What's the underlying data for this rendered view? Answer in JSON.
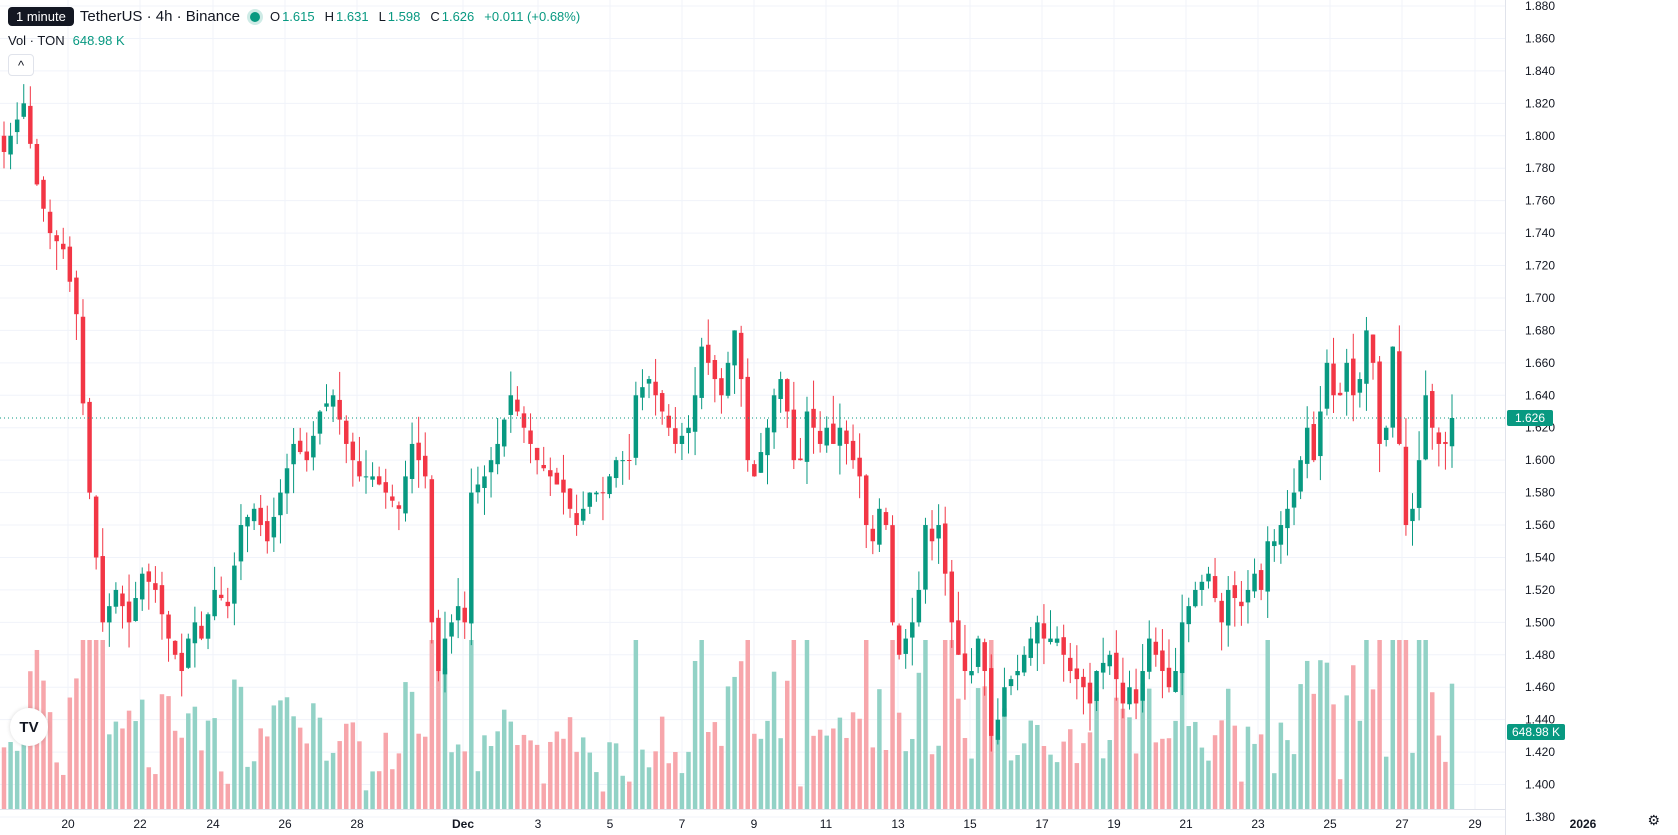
{
  "header": {
    "tooltip": "1 minute",
    "title": "TetherUS · 4h · Binance",
    "open_label": "O",
    "open": "1.615",
    "high_label": "H",
    "high": "1.631",
    "low_label": "L",
    "low": "1.598",
    "close_label": "C",
    "close": "1.626",
    "change": "+0.011 (+0.68%)"
  },
  "volume": {
    "label": "Vol · TON",
    "value": "648.98 K"
  },
  "controls": {
    "collapse": "^",
    "logo": "TV",
    "settings": "⚙"
  },
  "colors": {
    "up": "#089981",
    "down": "#f23645",
    "up_vol": "#92d2c6",
    "down_vol": "#f7a6ab",
    "grid": "#f0f3fa",
    "axis_text": "#131722",
    "last_price_line": "#089981"
  },
  "chart_data": {
    "type": "candlestick",
    "symbol": "TetherUS · 4h · Binance",
    "ylim": [
      1.38,
      1.88
    ],
    "y_ticks": [
      "1.880",
      "1.860",
      "1.840",
      "1.820",
      "1.800",
      "1.780",
      "1.760",
      "1.740",
      "1.720",
      "1.700",
      "1.680",
      "1.660",
      "1.640",
      "1.620",
      "1.600",
      "1.580",
      "1.560",
      "1.540",
      "1.520",
      "1.500",
      "1.480",
      "1.460",
      "1.440",
      "1.420",
      "1.400",
      "1.380"
    ],
    "x_ticks": [
      "20",
      "22",
      "24",
      "26",
      "28",
      "Dec",
      "3",
      "5",
      "7",
      "9",
      "11",
      "13",
      "15",
      "17",
      "19",
      "21",
      "23",
      "25",
      "27",
      "29",
      "2026"
    ],
    "last_price": "1.626",
    "last_volume": "648.98 K",
    "keypoints": [
      [
        0,
        1.79
      ],
      [
        3,
        1.82
      ],
      [
        5,
        1.77
      ],
      [
        7,
        1.74
      ],
      [
        9,
        1.73
      ],
      [
        11,
        1.69
      ],
      [
        13,
        1.58
      ],
      [
        15,
        1.5
      ],
      [
        17,
        1.52
      ],
      [
        19,
        1.5
      ],
      [
        21,
        1.53
      ],
      [
        23,
        1.52
      ],
      [
        25,
        1.49
      ],
      [
        27,
        1.47
      ],
      [
        28,
        1.49
      ],
      [
        29,
        1.5
      ],
      [
        30,
        1.49
      ],
      [
        32,
        1.52
      ],
      [
        34,
        1.51
      ],
      [
        36,
        1.56
      ],
      [
        38,
        1.57
      ],
      [
        40,
        1.55
      ],
      [
        42,
        1.58
      ],
      [
        44,
        1.61
      ],
      [
        46,
        1.6
      ],
      [
        48,
        1.63
      ],
      [
        50,
        1.64
      ],
      [
        52,
        1.61
      ],
      [
        54,
        1.59
      ],
      [
        56,
        1.59
      ],
      [
        58,
        1.58
      ],
      [
        60,
        1.57
      ],
      [
        62,
        1.61
      ],
      [
        64,
        1.59
      ],
      [
        65,
        1.5
      ],
      [
        66,
        1.47
      ],
      [
        67,
        1.49
      ],
      [
        69,
        1.51
      ],
      [
        70,
        1.5
      ],
      [
        71,
        1.58
      ],
      [
        73,
        1.59
      ],
      [
        75,
        1.61
      ],
      [
        77,
        1.64
      ],
      [
        79,
        1.62
      ],
      [
        81,
        1.6
      ],
      [
        83,
        1.59
      ],
      [
        85,
        1.58
      ],
      [
        87,
        1.56
      ],
      [
        89,
        1.58
      ],
      [
        91,
        1.58
      ],
      [
        93,
        1.6
      ],
      [
        95,
        1.6
      ],
      [
        96,
        1.64
      ],
      [
        98,
        1.65
      ],
      [
        100,
        1.63
      ],
      [
        102,
        1.61
      ],
      [
        104,
        1.62
      ],
      [
        105,
        1.64
      ],
      [
        106,
        1.67
      ],
      [
        107,
        1.66
      ],
      [
        108,
        1.65
      ],
      [
        109,
        1.64
      ],
      [
        110,
        1.66
      ],
      [
        111,
        1.68
      ],
      [
        112,
        1.65
      ],
      [
        113,
        1.6
      ],
      [
        114,
        1.59
      ],
      [
        116,
        1.62
      ],
      [
        117,
        1.64
      ],
      [
        118,
        1.65
      ],
      [
        119,
        1.63
      ],
      [
        120,
        1.6
      ],
      [
        121,
        1.6
      ],
      [
        122,
        1.63
      ],
      [
        123,
        1.62
      ],
      [
        124,
        1.61
      ],
      [
        125,
        1.62
      ],
      [
        126,
        1.61
      ],
      [
        127,
        1.62
      ],
      [
        128,
        1.61
      ],
      [
        130,
        1.59
      ],
      [
        131,
        1.56
      ],
      [
        132,
        1.55
      ],
      [
        133,
        1.57
      ],
      [
        134,
        1.56
      ],
      [
        135,
        1.5
      ],
      [
        136,
        1.48
      ],
      [
        137,
        1.49
      ],
      [
        138,
        1.5
      ],
      [
        139,
        1.52
      ],
      [
        140,
        1.56
      ],
      [
        141,
        1.55
      ],
      [
        142,
        1.56
      ],
      [
        143,
        1.53
      ],
      [
        144,
        1.5
      ],
      [
        145,
        1.48
      ],
      [
        146,
        1.47
      ],
      [
        147,
        1.47
      ],
      [
        148,
        1.49
      ],
      [
        149,
        1.47
      ],
      [
        150,
        1.43
      ],
      [
        151,
        1.44
      ],
      [
        152,
        1.46
      ],
      [
        154,
        1.47
      ],
      [
        156,
        1.49
      ],
      [
        157,
        1.5
      ],
      [
        158,
        1.49
      ],
      [
        160,
        1.49
      ],
      [
        162,
        1.47
      ],
      [
        164,
        1.46
      ],
      [
        165,
        1.45
      ],
      [
        166,
        1.47
      ],
      [
        168,
        1.48
      ],
      [
        170,
        1.45
      ],
      [
        171,
        1.46
      ],
      [
        172,
        1.45
      ],
      [
        174,
        1.49
      ],
      [
        176,
        1.47
      ],
      [
        177,
        1.46
      ],
      [
        178,
        1.47
      ],
      [
        179,
        1.5
      ],
      [
        181,
        1.52
      ],
      [
        183,
        1.53
      ],
      [
        185,
        1.5
      ],
      [
        186,
        1.52
      ],
      [
        188,
        1.51
      ],
      [
        190,
        1.53
      ],
      [
        191,
        1.52
      ],
      [
        192,
        1.55
      ],
      [
        193,
        1.55
      ],
      [
        194,
        1.56
      ],
      [
        195,
        1.57
      ],
      [
        196,
        1.58
      ],
      [
        197,
        1.6
      ],
      [
        198,
        1.62
      ],
      [
        199,
        1.6
      ],
      [
        200,
        1.63
      ],
      [
        201,
        1.66
      ],
      [
        202,
        1.64
      ],
      [
        203,
        1.64
      ],
      [
        204,
        1.66
      ],
      [
        205,
        1.64
      ],
      [
        206,
        1.65
      ],
      [
        207,
        1.68
      ],
      [
        208,
        1.66
      ],
      [
        209,
        1.61
      ],
      [
        210,
        1.62
      ],
      [
        211,
        1.67
      ],
      [
        212,
        1.61
      ],
      [
        213,
        1.56
      ],
      [
        214,
        1.57
      ],
      [
        215,
        1.6
      ],
      [
        216,
        1.64
      ],
      [
        217,
        1.62
      ],
      [
        218,
        1.61
      ],
      [
        219,
        1.61
      ],
      [
        220,
        1.626
      ]
    ]
  }
}
